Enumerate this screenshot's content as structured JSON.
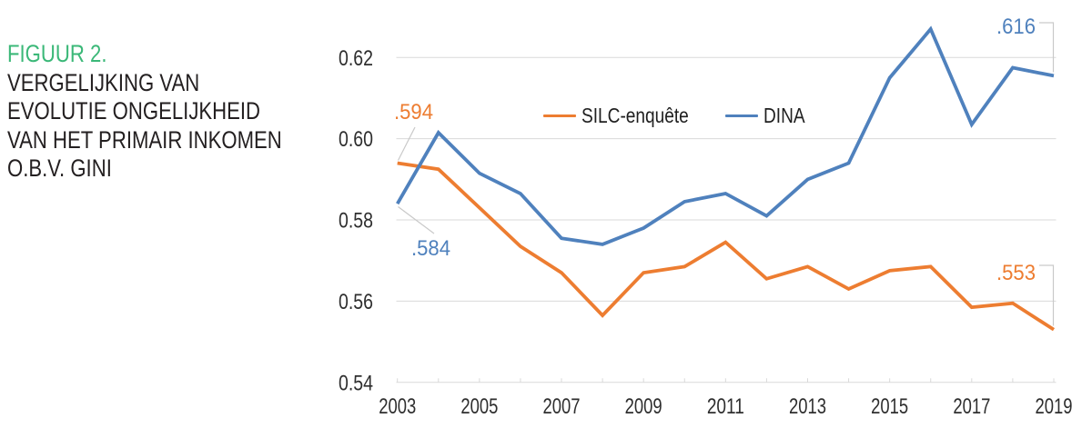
{
  "figure": {
    "label": "FIGUUR 2.",
    "label_color": "#3BB878",
    "title_color": "#231F20",
    "title_lines": [
      "VERGELIJKING VAN",
      "EVOLUTIE ONGELIJKHEID",
      "VAN HET PRIMAIR INKOMEN",
      "O.B.V. GINI"
    ]
  },
  "chart_data": {
    "type": "line",
    "x": [
      2003,
      2004,
      2005,
      2006,
      2007,
      2008,
      2009,
      2010,
      2011,
      2012,
      2013,
      2014,
      2015,
      2016,
      2017,
      2018,
      2019
    ],
    "series": [
      {
        "name": "SILC-enquête",
        "color": "#ED7D31",
        "values": [
          0.594,
          0.5925,
          0.583,
          0.5735,
          0.567,
          0.5565,
          0.567,
          0.5685,
          0.5745,
          0.5655,
          0.5685,
          0.563,
          0.5675,
          0.5685,
          0.5585,
          0.5595,
          0.553
        ]
      },
      {
        "name": "DINA",
        "color": "#4F81BD",
        "values": [
          0.584,
          0.6015,
          0.5915,
          0.5865,
          0.5755,
          0.574,
          0.578,
          0.5845,
          0.5865,
          0.581,
          0.59,
          0.594,
          0.615,
          0.627,
          0.6035,
          0.6175,
          0.6155
        ]
      }
    ],
    "title": "",
    "xlabel": "",
    "ylabel": "",
    "ylim": [
      0.54,
      0.62
    ],
    "yticks": [
      0.54,
      0.56,
      0.58,
      0.6,
      0.62
    ],
    "ytick_labels": [
      "0.54",
      "0.56",
      "0.58",
      "0.60",
      "0.62"
    ],
    "xtick_labels": [
      "2003",
      "2005",
      "2007",
      "2009",
      "2011",
      "2013",
      "2015",
      "2017",
      "2019"
    ],
    "grid": "horizontal gridlines, light gray; bottom axis with yearly tick marks",
    "legend_position": "top-center",
    "annotations": [
      {
        "text": ".594",
        "series": "SILC-enquête",
        "year": 2003,
        "value": 0.594,
        "color": "#ED7D31"
      },
      {
        "text": ".584",
        "series": "DINA",
        "year": 2003,
        "value": 0.584,
        "color": "#4F81BD"
      },
      {
        "text": ".616",
        "series": "DINA",
        "year": 2019,
        "value": 0.6155,
        "color": "#4F81BD"
      },
      {
        "text": ".553",
        "series": "SILC-enquête",
        "year": 2019,
        "value": 0.553,
        "color": "#ED7D31"
      }
    ],
    "grid_color": "#D9D9D9",
    "leader_line_color": "#C9C9C9",
    "axis_text_color": "#2E2E2E"
  }
}
